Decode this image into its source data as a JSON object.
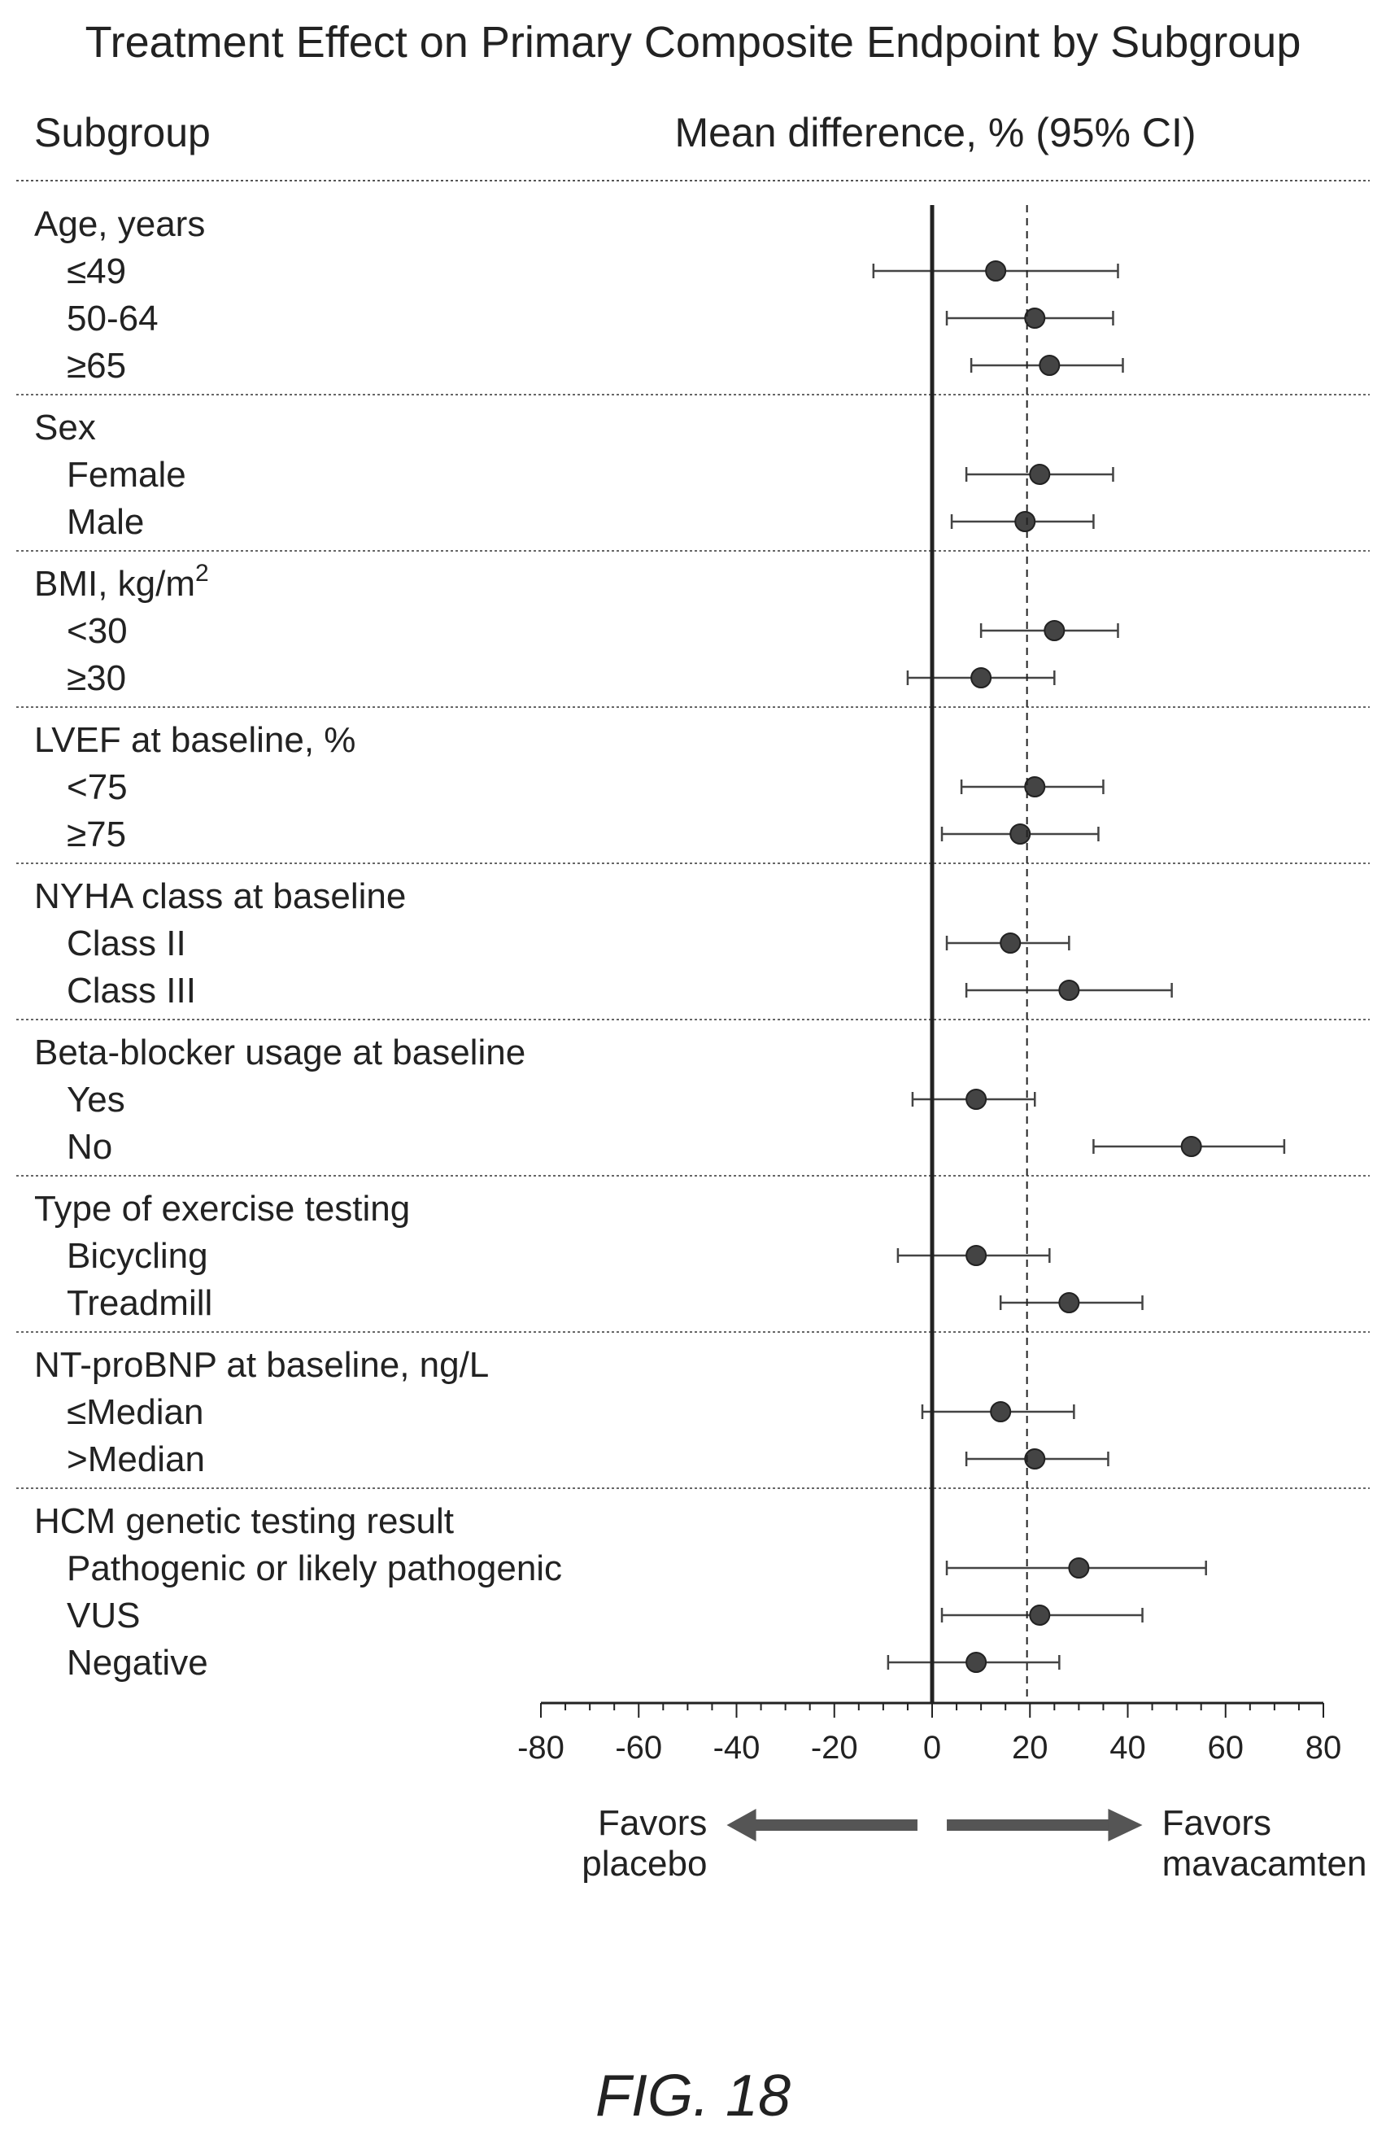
{
  "chart_data": {
    "type": "forest",
    "title": "Treatment Effect on Primary Composite Endpoint by Subgroup",
    "column_headers": {
      "subgroup": "Subgroup",
      "effect": "Mean difference, % (95% CI)"
    },
    "xlim": [
      -80,
      80
    ],
    "xticks": [
      -80,
      -60,
      -40,
      -20,
      0,
      20,
      40,
      60,
      80
    ],
    "xtick_labels": [
      "-80",
      "-60",
      "-40",
      "-20",
      "0",
      "20",
      "40",
      "60",
      "80"
    ],
    "reference_line": 0,
    "overall_effect_line": 19.4,
    "favors_left": [
      "Favors",
      "placebo"
    ],
    "favors_right": [
      "Favors",
      "mavacamten"
    ],
    "figure_label": "FIG. 18",
    "groups": [
      {
        "label": "Age, years",
        "items": [
          {
            "label": "≤49",
            "estimate": 13,
            "lower": -12,
            "upper": 38
          },
          {
            "label": "50-64",
            "estimate": 21,
            "lower": 3,
            "upper": 37
          },
          {
            "label": "≥65",
            "estimate": 24,
            "lower": 8,
            "upper": 39
          }
        ]
      },
      {
        "label": "Sex",
        "items": [
          {
            "label": "Female",
            "estimate": 22,
            "lower": 7,
            "upper": 37
          },
          {
            "label": "Male",
            "estimate": 19,
            "lower": 4,
            "upper": 33
          }
        ]
      },
      {
        "label": "BMI, kg/m",
        "label_sup": "2",
        "items": [
          {
            "label": "<30",
            "estimate": 25,
            "lower": 10,
            "upper": 38
          },
          {
            "label": "≥30",
            "estimate": 10,
            "lower": -5,
            "upper": 25
          }
        ]
      },
      {
        "label": "LVEF at baseline, %",
        "items": [
          {
            "label": "<75",
            "estimate": 21,
            "lower": 6,
            "upper": 35
          },
          {
            "label": "≥75",
            "estimate": 18,
            "lower": 2,
            "upper": 34
          }
        ]
      },
      {
        "label": "NYHA class at baseline",
        "items": [
          {
            "label": "Class II",
            "estimate": 16,
            "lower": 3,
            "upper": 28
          },
          {
            "label": "Class III",
            "estimate": 28,
            "lower": 7,
            "upper": 49
          }
        ]
      },
      {
        "label": "Beta-blocker usage at baseline",
        "items": [
          {
            "label": "Yes",
            "estimate": 9,
            "lower": -4,
            "upper": 21
          },
          {
            "label": "No",
            "estimate": 53,
            "lower": 33,
            "upper": 72
          }
        ]
      },
      {
        "label": "Type of exercise testing",
        "items": [
          {
            "label": "Bicycling",
            "estimate": 9,
            "lower": -7,
            "upper": 24
          },
          {
            "label": "Treadmill",
            "estimate": 28,
            "lower": 14,
            "upper": 43
          }
        ]
      },
      {
        "label": "NT-proBNP at baseline, ng/L",
        "items": [
          {
            "label": "≤Median",
            "estimate": 14,
            "lower": -2,
            "upper": 29
          },
          {
            "label": ">Median",
            "estimate": 21,
            "lower": 7,
            "upper": 36
          }
        ]
      },
      {
        "label": "HCM genetic testing result",
        "items": [
          {
            "label": "Pathogenic or likely pathogenic",
            "estimate": 30,
            "lower": 3,
            "upper": 56
          },
          {
            "label": "VUS",
            "estimate": 22,
            "lower": 2,
            "upper": 43
          },
          {
            "label": "Negative",
            "estimate": 9,
            "lower": -9,
            "upper": 26
          }
        ]
      }
    ],
    "colors": {
      "ink": "#222222",
      "marker": "#444444",
      "divider": "#666666"
    }
  }
}
